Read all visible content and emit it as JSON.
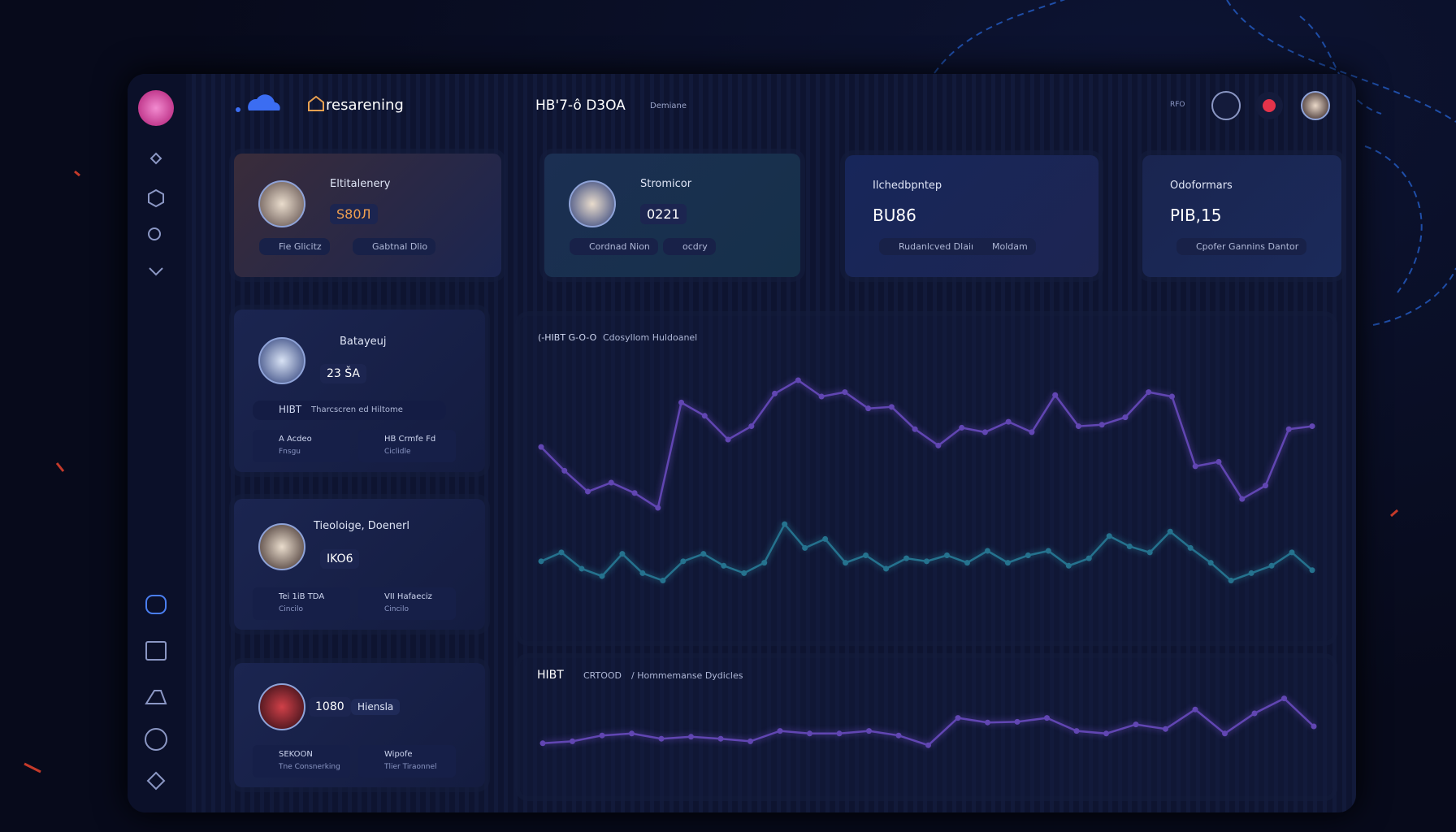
{
  "header": {
    "brand": "resarening",
    "title": "HB'7-ô D3OA",
    "subtitle": "Demiane",
    "status": "RFO"
  },
  "stat_cards": [
    {
      "label": "Eltitalenery",
      "value": "S80Л",
      "chips": [
        "Fie Glicitz",
        "Gabtnal Dlio"
      ]
    },
    {
      "label": "Stromicor",
      "value": "0221",
      "chips": [
        "Cordnad Nion",
        "ocdry"
      ]
    },
    {
      "label": "Ilchedbpntep",
      "value": "BU86",
      "chips": [
        "Rudanlcved Dlain",
        "Moldam"
      ]
    },
    {
      "label": "Odoformars",
      "value": "PIB,15",
      "chips": [
        "Cpofer Gannins Dantor"
      ]
    }
  ],
  "profile_cards": [
    {
      "label": "Batayeuj",
      "value": "23 ŠA",
      "banner": {
        "code": "HIBT",
        "text": "Tharcscren ed Hiltome"
      },
      "items": [
        {
          "title": "A Acdeo",
          "sub": "Fnsgu"
        },
        {
          "title": "HB Crmfe Fd",
          "sub": "Ciclidle"
        }
      ]
    },
    {
      "label": "Tieoloige, Doenerl",
      "value": "IKO6",
      "items": [
        {
          "title": "Tei 1iB TDA",
          "sub": "Cincilo"
        },
        {
          "title": "VII Hafaeciz",
          "sub": "Cincilo"
        }
      ]
    },
    {
      "value": "1080",
      "tag": "Hiensla",
      "items": [
        {
          "title": "SEKOON",
          "sub": "Tne Consnerking"
        },
        {
          "title": "Wipofe",
          "sub": "Tlier Tiraonnel"
        }
      ]
    }
  ],
  "charts": [
    {
      "type": "line",
      "title": "(-HIBT G-O-O",
      "subtitle": "Cdosyllom Huldoanel",
      "ylim": [
        -50,
        100
      ],
      "series": [
        {
          "color": "#8a5cf0",
          "values": [
            49,
            33,
            19,
            25,
            18,
            8,
            79,
            70,
            54,
            63,
            85,
            94,
            83,
            86,
            75,
            76,
            61,
            50,
            62,
            59,
            66,
            59,
            84,
            63,
            64,
            69,
            86,
            83,
            36,
            39,
            14,
            23,
            61,
            63
          ]
        },
        {
          "color": "#2fa0b8",
          "values": [
            -28,
            -22,
            -33,
            -38,
            -23,
            -36,
            -41,
            -28,
            -23,
            -31,
            -36,
            -29,
            -3,
            -19,
            -13,
            -29,
            -24,
            -33,
            -26,
            -28,
            -24,
            -29,
            -21,
            -29,
            -24,
            -21,
            -31,
            -26,
            -11,
            -18,
            -22,
            -8,
            -19,
            -29,
            -41,
            -36,
            -31,
            -22,
            -34
          ]
        }
      ]
    },
    {
      "type": "line",
      "title": "HIBT",
      "subtitle": "CRTOOD",
      "note": "/ Hommemanse Dydicles",
      "ylim": [
        0,
        100
      ],
      "series": [
        {
          "color": "#8a5cf0",
          "values": [
            14,
            17,
            26,
            29,
            21,
            24,
            21,
            17,
            33,
            29,
            29,
            33,
            26,
            11,
            53,
            46,
            47,
            53,
            33,
            29,
            43,
            36,
            66,
            29,
            60,
            83,
            40
          ]
        }
      ]
    }
  ]
}
